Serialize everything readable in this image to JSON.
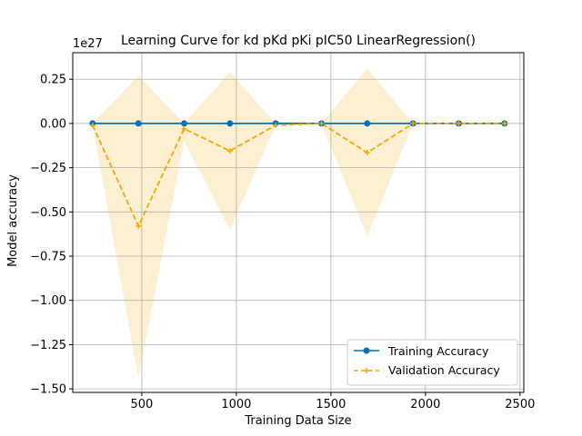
{
  "chart_data": {
    "type": "line",
    "title": "Learning Curve for kd pKd pKi pIC50 LinearRegression()",
    "xlabel": "Training Data Size",
    "ylabel": "Model accuracy",
    "y_offset_label": "1e27",
    "xlim": [
      135,
      2520
    ],
    "ylim": [
      -1.52,
      0.4
    ],
    "xticks": [
      500,
      1000,
      1500,
      2000,
      2500
    ],
    "xtick_labels": [
      "500",
      "1000",
      "1500",
      "2000",
      "2500"
    ],
    "yticks": [
      0.25,
      0.0,
      -0.25,
      -0.5,
      -0.75,
      -1.0,
      -1.25,
      -1.5
    ],
    "ytick_labels": [
      "0.25",
      "0.00",
      "−0.25",
      "−0.50",
      "−0.75",
      "−1.00",
      "−1.25",
      "−1.50"
    ],
    "grid": true,
    "legend_position": "lower-right",
    "x": [
      240,
      482,
      724,
      966,
      1208,
      1450,
      1692,
      1934,
      2176,
      2418
    ],
    "series": [
      {
        "name": "Training Accuracy",
        "color": "#0072BD",
        "marker": "circle",
        "line_style": "solid",
        "values": [
          0,
          0,
          0,
          0,
          0,
          0,
          0,
          0,
          0,
          0
        ]
      },
      {
        "name": "Validation Accuracy",
        "color": "#F2A900",
        "marker": "plus",
        "line_style": "dashed",
        "values": [
          -0.01,
          -0.58,
          -0.03,
          -0.155,
          -0.01,
          0.0,
          -0.165,
          0.0,
          0.0,
          0.0
        ],
        "band_upper": [
          0.0,
          0.27,
          0.0,
          0.29,
          0.0,
          0.0,
          0.31,
          0.0,
          0.0,
          0.0
        ],
        "band_lower": [
          -0.01,
          -1.44,
          -0.1,
          -0.6,
          -0.01,
          0.0,
          -0.64,
          0.0,
          0.0,
          0.0
        ],
        "band_color": "#FCE5B4"
      }
    ]
  }
}
